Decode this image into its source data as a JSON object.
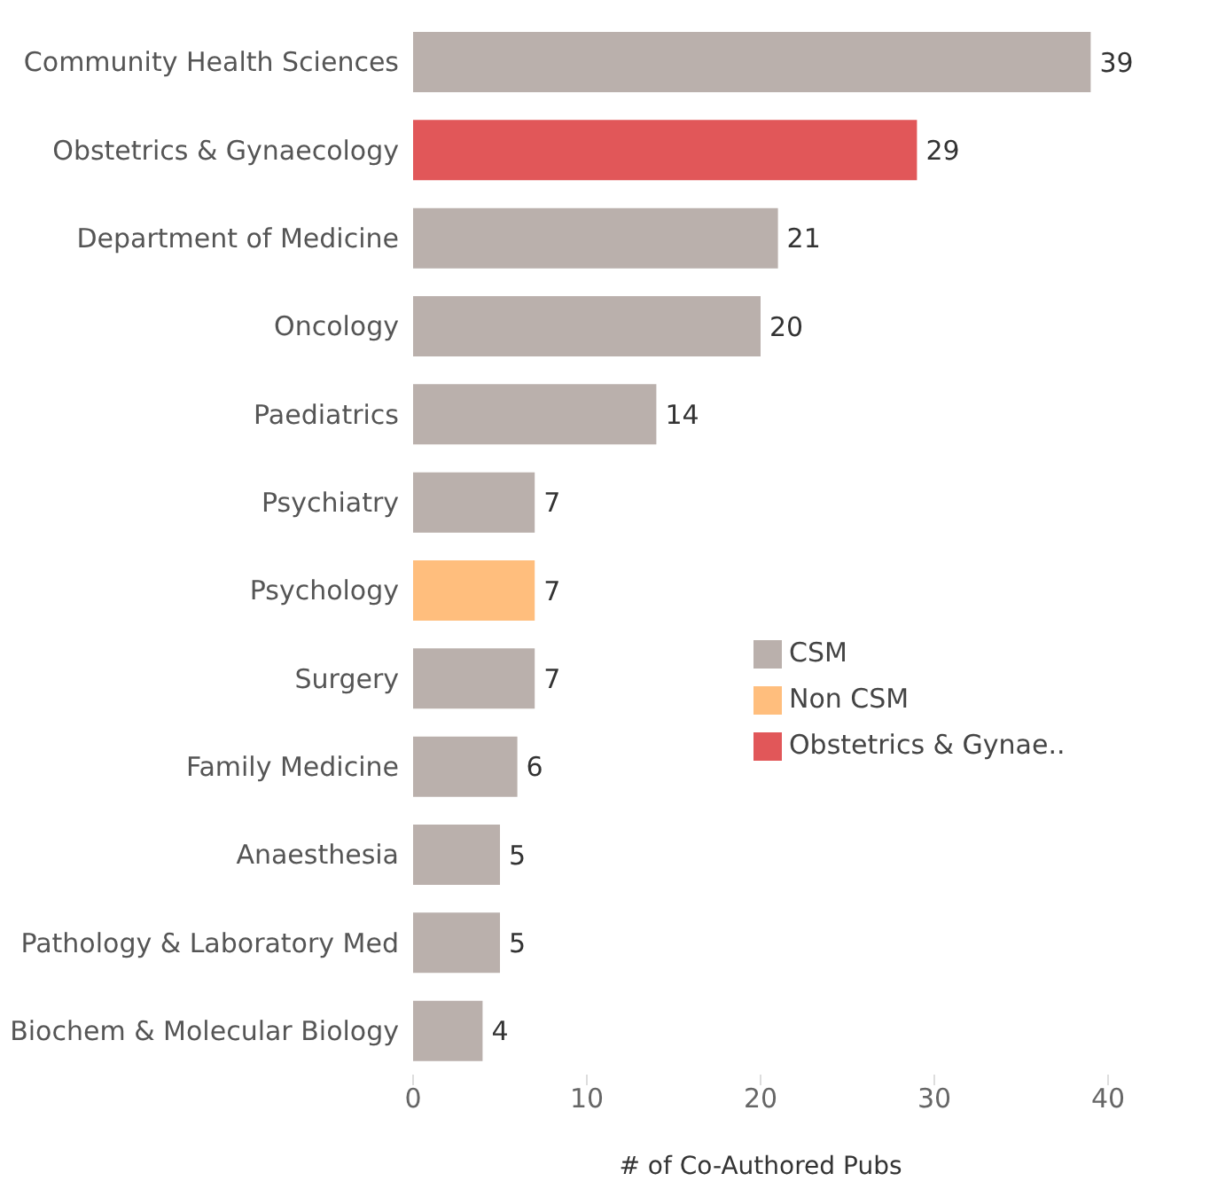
{
  "chart_data": {
    "type": "bar",
    "orientation": "horizontal",
    "stacked": true,
    "xlabel": "# of Co-Authored Pubs",
    "categories": [
      "Community Health Sciences",
      "Obstetrics & Gynaecology",
      "Department of Medicine",
      "Oncology",
      "Paediatrics",
      "Psychiatry",
      "Psychology",
      "Surgery",
      "Family Medicine",
      "Anaesthesia",
      "Pathology & Laboratory Med",
      "Biochem & Molecular Biology"
    ],
    "series": [
      {
        "name": "CSM",
        "color": "#bab0ac",
        "values": [
          39,
          null,
          21,
          20,
          14,
          7,
          null,
          7,
          6,
          5,
          5,
          4
        ]
      },
      {
        "name": "Non CSM",
        "color": "#ffbe7d",
        "values": [
          null,
          null,
          null,
          null,
          null,
          null,
          7,
          null,
          null,
          null,
          null,
          null
        ]
      },
      {
        "name": "Obstetrics & Gynae..",
        "color": "#e15759",
        "values": [
          null,
          29,
          null,
          null,
          null,
          null,
          null,
          null,
          null,
          null,
          null,
          null
        ]
      }
    ],
    "xlim": [
      0,
      40
    ],
    "xticks": [
      0,
      10,
      20,
      30,
      40
    ],
    "data_labels": true,
    "grid": false,
    "legend": "bottom right"
  }
}
